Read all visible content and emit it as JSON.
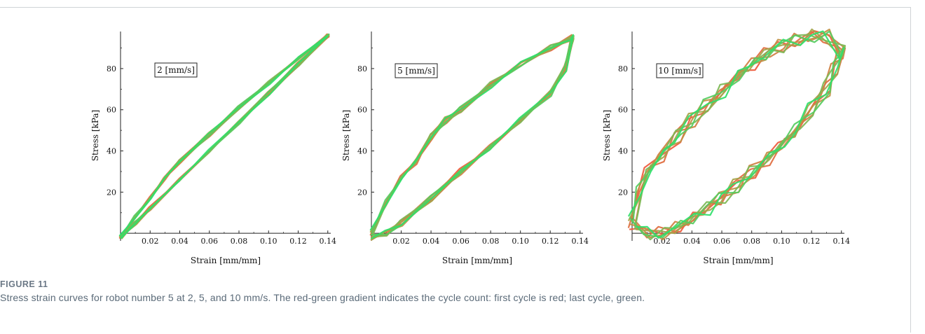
{
  "caption": {
    "label": "FIGURE 11",
    "text": "Stress strain curves for robot number 5 at 2, 5, and 10 mm/s. The red-green gradient indicates the cycle count: first cycle is red; last cycle, green."
  },
  "colors": {
    "first_cycle": "#ee5a3c",
    "middle_cycle": "#b89a45",
    "last_cycle": "#2fe06a"
  },
  "chart_data": [
    {
      "type": "line",
      "annotation": "2 [mm/s]",
      "xlabel": "Strain [mm/mm]",
      "ylabel": "Stress [kPa]",
      "xlim": [
        0,
        0.142
      ],
      "ylim": [
        -3,
        98
      ],
      "xticks": [
        "0.02",
        "0.04",
        "0.06",
        "0.08",
        "0.10",
        "0.12",
        "0.14"
      ],
      "yticks": [
        "20",
        "40",
        "60",
        "80"
      ],
      "cycles": 8,
      "loading": {
        "x": [
          0.0,
          0.01,
          0.02,
          0.03,
          0.04,
          0.06,
          0.08,
          0.1,
          0.12,
          0.14
        ],
        "y": [
          -2,
          8,
          17,
          27,
          35,
          48,
          61,
          73,
          85,
          96
        ]
      },
      "unloading": {
        "x": [
          0.14,
          0.12,
          0.1,
          0.08,
          0.06,
          0.04,
          0.02,
          0.01,
          0.0
        ],
        "y": [
          96,
          82,
          68,
          54,
          40,
          26,
          12,
          5,
          -2
        ]
      }
    },
    {
      "type": "line",
      "annotation": "5 [mm/s]",
      "xlabel": "Strain [mm/mm]",
      "ylabel": "Stress [kPa]",
      "xlim": [
        0,
        0.142
      ],
      "ylim": [
        -3,
        98
      ],
      "xticks": [
        "0.02",
        "0.04",
        "0.06",
        "0.08",
        "0.10",
        "0.12",
        "0.14"
      ],
      "yticks": [
        "20",
        "40",
        "60",
        "80"
      ],
      "cycles": 8,
      "loading": {
        "x": [
          0.0,
          0.01,
          0.02,
          0.03,
          0.04,
          0.05,
          0.06,
          0.08,
          0.1,
          0.12,
          0.135
        ],
        "y": [
          0,
          15,
          27,
          35,
          47,
          55,
          60,
          72,
          82,
          90,
          95
        ]
      },
      "unloading": {
        "x": [
          0.135,
          0.13,
          0.12,
          0.1,
          0.08,
          0.06,
          0.04,
          0.02,
          0.01,
          0.0
        ],
        "y": [
          95,
          80,
          68,
          55,
          42,
          30,
          17,
          5,
          0,
          -2
        ]
      }
    },
    {
      "type": "line",
      "annotation": "10 [mm/s]",
      "xlabel": "Strain [mm/mm]",
      "ylabel": "Stress [kPa]",
      "xlim": [
        0,
        0.142
      ],
      "ylim": [
        -3,
        98
      ],
      "xticks": [
        "0.02",
        "0.04",
        "0.06",
        "0.08",
        "0.10",
        "0.12",
        "0.14"
      ],
      "yticks": [
        "20",
        "40",
        "60",
        "80"
      ],
      "cycles": 8,
      "loading": {
        "x": [
          0.0,
          0.005,
          0.01,
          0.02,
          0.03,
          0.04,
          0.05,
          0.06,
          0.07,
          0.08,
          0.09,
          0.1,
          0.11,
          0.12,
          0.13,
          0.14
        ],
        "y": [
          5,
          20,
          30,
          38,
          47,
          55,
          62,
          69,
          76,
          82,
          87,
          91,
          94,
          96,
          96,
          88
        ]
      },
      "unloading": {
        "x": [
          0.14,
          0.135,
          0.13,
          0.12,
          0.11,
          0.1,
          0.09,
          0.08,
          0.07,
          0.06,
          0.05,
          0.04,
          0.03,
          0.02,
          0.01,
          0.0
        ],
        "y": [
          88,
          80,
          70,
          60,
          50,
          43,
          36,
          30,
          23,
          17,
          12,
          7,
          3,
          0,
          0,
          5
        ]
      }
    }
  ]
}
